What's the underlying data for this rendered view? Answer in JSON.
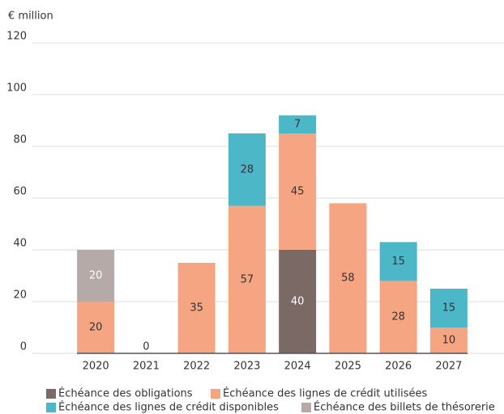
{
  "chart_data": {
    "type": "stacked_bar",
    "y_label": "€ million",
    "categories": [
      "2020",
      "2021",
      "2022",
      "2023",
      "2024",
      "2025",
      "2026",
      "2027"
    ],
    "series": [
      {
        "name": "Échéance des obligations",
        "color": "#7b6965",
        "label_color": "#ffffff",
        "values": [
          null,
          null,
          null,
          null,
          40,
          null,
          null,
          null
        ]
      },
      {
        "name": "Échéance des lignes de crédit utilisées",
        "color": "#f5a582",
        "label_color": "#333333",
        "values": [
          20,
          0,
          35,
          57,
          45,
          58,
          28,
          10
        ]
      },
      {
        "name": "Échéance des lignes de crédit disponibles",
        "color": "#4cb8c7",
        "label_color": "#333333",
        "values": [
          null,
          null,
          null,
          28,
          7,
          null,
          15,
          15
        ]
      },
      {
        "name": "Échéance des billets de thésorerie",
        "color": "#b5aaa8",
        "label_color": "#ffffff",
        "values": [
          20,
          null,
          null,
          null,
          null,
          null,
          null,
          null
        ]
      }
    ],
    "ylim": [
      0,
      120
    ],
    "yticks": [
      0,
      20,
      40,
      60,
      80,
      100,
      120
    ],
    "grid": true
  }
}
